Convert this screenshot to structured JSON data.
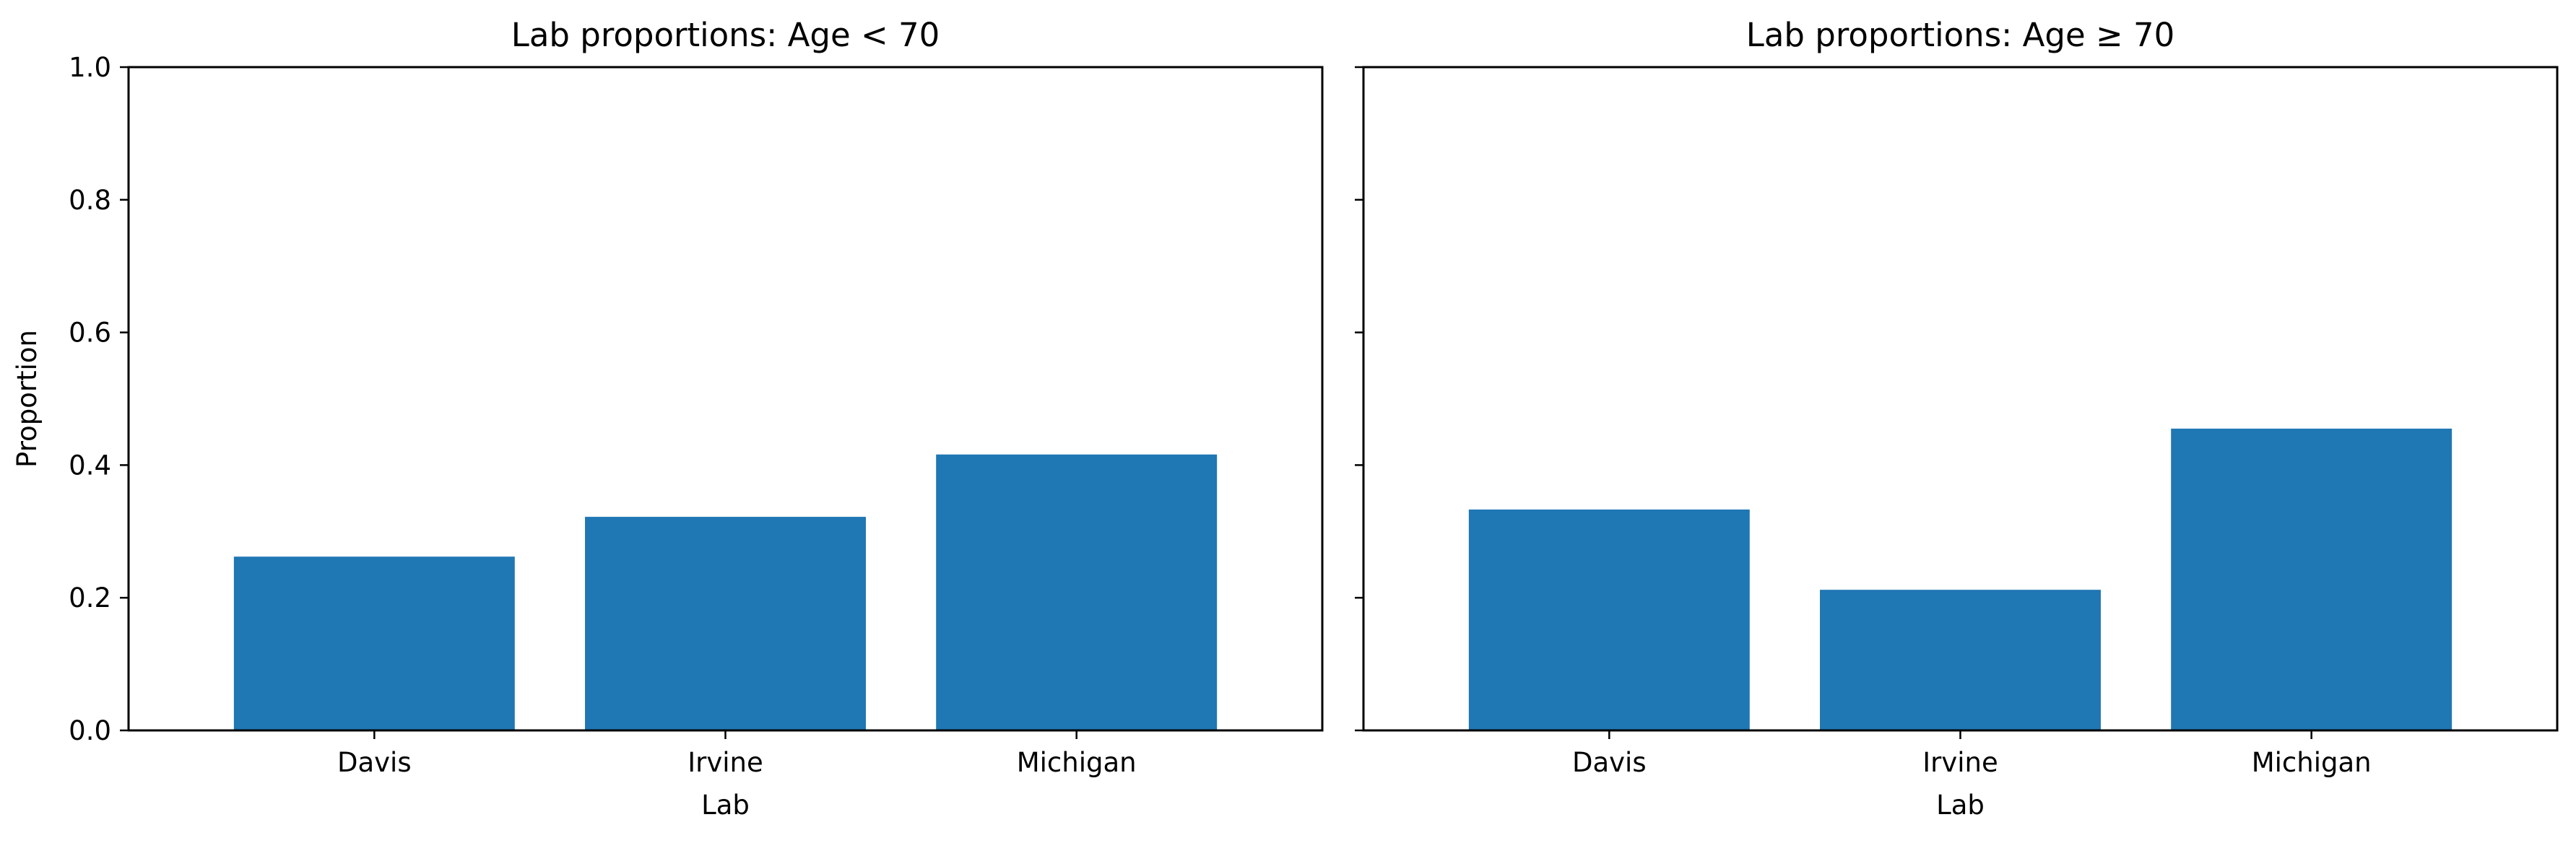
{
  "colors": {
    "bar": "#1f77b4",
    "axis": "#000000",
    "background": "#ffffff"
  },
  "chart_data": [
    {
      "type": "bar",
      "title": "Lab proportions: Age < 70",
      "xlabel": "Lab",
      "ylabel": "Proportion",
      "categories": [
        "Davis",
        "Irvine",
        "Michigan"
      ],
      "values": [
        0.262,
        0.322,
        0.416
      ],
      "ylim": [
        0,
        1.0
      ],
      "yticks": [
        "0.0",
        "0.2",
        "0.4",
        "0.6",
        "0.8",
        "1.0"
      ],
      "grid": false
    },
    {
      "type": "bar",
      "title": "Lab proportions: Age ≥ 70",
      "xlabel": "Lab",
      "ylabel": "",
      "categories": [
        "Davis",
        "Irvine",
        "Michigan"
      ],
      "values": [
        0.333,
        0.212,
        0.455
      ],
      "ylim": [
        0,
        1.0
      ],
      "yticks": [],
      "grid": false
    }
  ]
}
